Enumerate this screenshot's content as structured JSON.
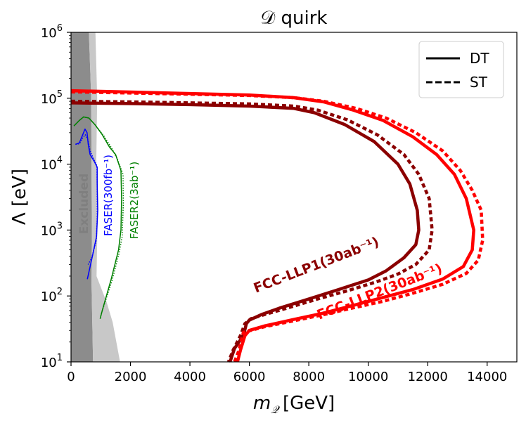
{
  "chart_data": {
    "type": "line",
    "title": "𝒟 quirk",
    "xlabel": "m",
    "xlabel_sub": "𝒬",
    "xlabel_unit": "[GeV]",
    "ylabel": "Λ [eV]",
    "xlim": [
      0,
      15000
    ],
    "ylim": [
      10,
      1000000
    ],
    "yscale": "log",
    "x_ticks": [
      0,
      2000,
      4000,
      6000,
      8000,
      10000,
      12000,
      14000
    ],
    "x_tick_labels": [
      "0",
      "2000",
      "4000",
      "6000",
      "8000",
      "10000",
      "12000",
      "14000"
    ],
    "y_ticks": [
      10,
      100,
      1000,
      10000,
      100000,
      1000000
    ],
    "y_tick_labels": [
      {
        "base": "10",
        "exp": "1"
      },
      {
        "base": "10",
        "exp": "2"
      },
      {
        "base": "10",
        "exp": "3"
      },
      {
        "base": "10",
        "exp": "4"
      },
      {
        "base": "10",
        "exp": "5"
      },
      {
        "base": "10",
        "exp": "6"
      }
    ],
    "grid": false,
    "legend": {
      "position": "top-right",
      "entries": [
        {
          "label": "DT",
          "style": "solid"
        },
        {
          "label": "ST",
          "style": "dashed"
        }
      ]
    },
    "excluded_regions": [
      {
        "name": "Excluded",
        "color": "#8c8c8c",
        "points": [
          [
            0,
            10
          ],
          [
            0,
            1000000
          ],
          [
            600,
            1000000
          ],
          [
            680,
            100000
          ],
          [
            700,
            1000
          ],
          [
            690,
            150
          ],
          [
            740,
            10
          ]
        ]
      },
      {
        "name": "",
        "color": "#c8c8c8",
        "points": [
          [
            600,
            1000000
          ],
          [
            820,
            1000000
          ],
          [
            880,
            100000
          ],
          [
            850,
            10000
          ],
          [
            900,
            2000
          ],
          [
            860,
            200
          ],
          [
            1200,
            80
          ],
          [
            1400,
            40
          ],
          [
            1650,
            10
          ],
          [
            740,
            10
          ],
          [
            690,
            150
          ],
          [
            700,
            1000
          ],
          [
            680,
            100000
          ]
        ]
      }
    ],
    "series": [
      {
        "label": "FCC-LLP1(30ab⁻¹)",
        "style": "solid",
        "color": "#8b0000",
        "width": 4.5,
        "points": [
          [
            0,
            85000
          ],
          [
            2000,
            83000
          ],
          [
            4000,
            80000
          ],
          [
            6000,
            76000
          ],
          [
            7500,
            70000
          ],
          [
            8200,
            60000
          ],
          [
            9200,
            40000
          ],
          [
            10200,
            22000
          ],
          [
            11000,
            10000
          ],
          [
            11400,
            5000
          ],
          [
            11650,
            2000
          ],
          [
            11700,
            1000
          ],
          [
            11600,
            600
          ],
          [
            11200,
            380
          ],
          [
            10600,
            240
          ],
          [
            10000,
            175
          ],
          [
            9000,
            125
          ],
          [
            8000,
            90
          ],
          [
            7000,
            65
          ],
          [
            6400,
            52
          ],
          [
            6000,
            43
          ],
          [
            5900,
            38
          ],
          [
            5800,
            25
          ],
          [
            5500,
            16
          ],
          [
            5350,
            10
          ]
        ]
      },
      {
        "label": "",
        "style": "dashed",
        "color": "#8b0000",
        "width": 4.5,
        "points": [
          [
            0,
            90000
          ],
          [
            2000,
            88000
          ],
          [
            4000,
            85000
          ],
          [
            6000,
            82000
          ],
          [
            7500,
            76000
          ],
          [
            8300,
            66000
          ],
          [
            9300,
            47000
          ],
          [
            10300,
            28000
          ],
          [
            11200,
            14000
          ],
          [
            11700,
            7000
          ],
          [
            12050,
            3000
          ],
          [
            12150,
            1000
          ],
          [
            12050,
            500
          ],
          [
            11600,
            300
          ],
          [
            11000,
            215
          ],
          [
            10300,
            165
          ],
          [
            9300,
            120
          ],
          [
            8300,
            90
          ],
          [
            7300,
            66
          ],
          [
            6500,
            52
          ],
          [
            6050,
            45
          ],
          [
            5850,
            38
          ],
          [
            5700,
            25
          ],
          [
            5450,
            15
          ],
          [
            5300,
            10
          ]
        ]
      },
      {
        "label": "FCC-LLP2(30ab⁻¹)",
        "style": "solid",
        "color": "#ff0000",
        "width": 4.5,
        "points": [
          [
            0,
            130000
          ],
          [
            2000,
            124000
          ],
          [
            4000,
            118000
          ],
          [
            6000,
            112000
          ],
          [
            7500,
            102000
          ],
          [
            8500,
            88000
          ],
          [
            9500,
            66000
          ],
          [
            10500,
            46000
          ],
          [
            11500,
            26000
          ],
          [
            12300,
            14000
          ],
          [
            12900,
            7000
          ],
          [
            13300,
            3000
          ],
          [
            13550,
            1000
          ],
          [
            13500,
            500
          ],
          [
            13200,
            280
          ],
          [
            12500,
            180
          ],
          [
            11500,
            125
          ],
          [
            10500,
            95
          ],
          [
            9500,
            72
          ],
          [
            8500,
            55
          ],
          [
            7500,
            44
          ],
          [
            6500,
            35
          ],
          [
            6000,
            30
          ],
          [
            5850,
            25
          ],
          [
            5700,
            15
          ],
          [
            5600,
            10
          ]
        ]
      },
      {
        "label": "",
        "style": "dashed",
        "color": "#ff0000",
        "width": 4.5,
        "points": [
          [
            0,
            125000
          ],
          [
            2000,
            120000
          ],
          [
            4000,
            115000
          ],
          [
            6000,
            110000
          ],
          [
            7500,
            102000
          ],
          [
            8500,
            90000
          ],
          [
            9600,
            70000
          ],
          [
            10600,
            50000
          ],
          [
            11600,
            30000
          ],
          [
            12500,
            16000
          ],
          [
            13100,
            8000
          ],
          [
            13500,
            4000
          ],
          [
            13800,
            2000
          ],
          [
            13850,
            700
          ],
          [
            13700,
            350
          ],
          [
            13300,
            220
          ],
          [
            12500,
            150
          ],
          [
            11500,
            110
          ],
          [
            10500,
            83
          ],
          [
            9500,
            66
          ],
          [
            8500,
            52
          ],
          [
            7500,
            42
          ],
          [
            6500,
            34
          ],
          [
            5800,
            28
          ],
          [
            5650,
            15
          ],
          [
            5500,
            10
          ]
        ]
      },
      {
        "label": "FASER(300fb⁻¹)",
        "style": "solid",
        "color": "#0000ff",
        "width": 1.5,
        "points": [
          [
            150,
            20000
          ],
          [
            280,
            21000
          ],
          [
            380,
            27000
          ],
          [
            470,
            34000
          ],
          [
            540,
            30000
          ],
          [
            580,
            20000
          ],
          [
            640,
            14000
          ],
          [
            780,
            11000
          ],
          [
            880,
            9000
          ],
          [
            880,
            5000
          ],
          [
            900,
            2000
          ],
          [
            860,
            800
          ],
          [
            720,
            400
          ],
          [
            550,
            180
          ]
        ]
      },
      {
        "label": "",
        "style": "dotted",
        "color": "#0000ff",
        "width": 1.5,
        "points": [
          [
            150,
            20000
          ],
          [
            290,
            20500
          ],
          [
            390,
            25000
          ],
          [
            480,
            28000
          ],
          [
            560,
            24000
          ],
          [
            640,
            16000
          ],
          [
            760,
            12000
          ],
          [
            870,
            9500
          ],
          [
            880,
            5000
          ],
          [
            880,
            1500
          ],
          [
            850,
            700
          ],
          [
            700,
            380
          ],
          [
            560,
            290
          ]
        ]
      },
      {
        "label": "FASER2(3ab⁻¹)",
        "style": "solid",
        "color": "#008000",
        "width": 1.5,
        "points": [
          [
            100,
            38000
          ],
          [
            280,
            46000
          ],
          [
            420,
            52000
          ],
          [
            600,
            50000
          ],
          [
            800,
            40000
          ],
          [
            1050,
            28000
          ],
          [
            1300,
            18000
          ],
          [
            1500,
            14000
          ],
          [
            1680,
            8000
          ],
          [
            1700,
            3000
          ],
          [
            1680,
            1000
          ],
          [
            1600,
            500
          ],
          [
            1350,
            180
          ],
          [
            1050,
            60
          ],
          [
            980,
            45
          ]
        ]
      },
      {
        "label": "",
        "style": "dotted",
        "color": "#008000",
        "width": 1.5,
        "points": [
          [
            100,
            38000
          ],
          [
            280,
            46000
          ],
          [
            420,
            52000
          ],
          [
            600,
            50000
          ],
          [
            800,
            40000
          ],
          [
            1100,
            27000
          ],
          [
            1350,
            18000
          ],
          [
            1560,
            12000
          ],
          [
            1750,
            7000
          ],
          [
            1760,
            2500
          ],
          [
            1720,
            800
          ],
          [
            1620,
            450
          ],
          [
            1380,
            170
          ],
          [
            1080,
            65
          ],
          [
            1000,
            50
          ]
        ]
      }
    ],
    "annotations": [
      {
        "text": "Excluded",
        "color": "#7f7f7f",
        "rotation": -90
      },
      {
        "text": "FASER(300fb⁻¹)",
        "color": "#0000ff",
        "rotation": -90
      },
      {
        "text": "FASER2(3ab⁻¹)",
        "color": "#008000",
        "rotation": -90
      },
      {
        "text": "FCC-LLP1(30ab⁻¹)",
        "color": "#8b0000",
        "rotation": -21
      },
      {
        "text": "FCC-LLP2(30ab⁻¹)",
        "color": "#ff0000",
        "rotation": -21
      }
    ]
  }
}
